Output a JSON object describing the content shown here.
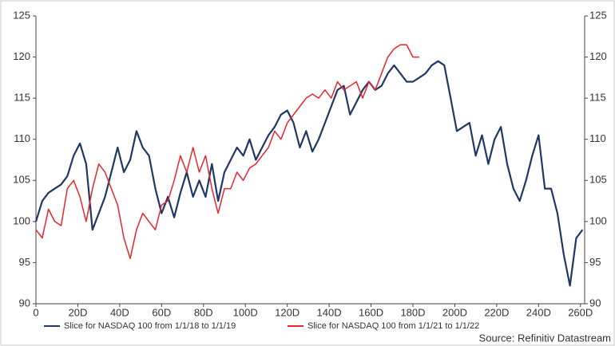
{
  "chart_data": {
    "type": "line",
    "x": [
      0,
      3,
      6,
      9,
      12,
      15,
      18,
      21,
      24,
      27,
      30,
      33,
      36,
      39,
      42,
      45,
      48,
      51,
      54,
      57,
      60,
      63,
      66,
      69,
      72,
      75,
      78,
      81,
      84,
      87,
      90,
      93,
      96,
      99,
      102,
      105,
      108,
      111,
      114,
      117,
      120,
      123,
      126,
      129,
      132,
      135,
      138,
      141,
      144,
      147,
      150,
      153,
      156,
      159,
      162,
      165,
      168,
      171,
      174,
      177,
      180,
      183,
      186,
      189,
      192,
      195,
      198,
      201,
      204,
      207,
      210,
      213,
      216,
      219,
      222,
      225,
      228,
      231,
      234,
      237,
      240,
      243,
      246,
      249,
      252,
      255,
      258,
      261
    ],
    "series": [
      {
        "name": "Slice for NASDAQ 100 from 1/1/18 to 1/1/19",
        "color": "#1f3864",
        "values": [
          100,
          102.5,
          103.5,
          104,
          104.5,
          105.5,
          108,
          109.5,
          107,
          99,
          101,
          103,
          106,
          109,
          106,
          107.5,
          111,
          109,
          108,
          104,
          101,
          103,
          100.5,
          103.5,
          106,
          103,
          105,
          103,
          107,
          102.5,
          106,
          107.5,
          109,
          108,
          110,
          107.5,
          109,
          110.5,
          111.5,
          113,
          113.5,
          112,
          109,
          111,
          108.5,
          110,
          112,
          114,
          116,
          116.5,
          113,
          114.5,
          116,
          117,
          116,
          116.5,
          118,
          119,
          118,
          117,
          117,
          117.5,
          118,
          119,
          119.5,
          119,
          115,
          111,
          111.5,
          112,
          108,
          110.5,
          107,
          110,
          111.5,
          107,
          104,
          102.5,
          105,
          108,
          110.5,
          104,
          104,
          101,
          96,
          92.2,
          98,
          99
        ]
      },
      {
        "name": "Slice for NASDAQ 100 from 1/1/21 to 1/1/22",
        "color": "#e8262b",
        "values": [
          99,
          98,
          101.5,
          100,
          99.5,
          104,
          105,
          103,
          100,
          104,
          107,
          106,
          104,
          102,
          98,
          95.5,
          99,
          101,
          100,
          99,
          102,
          102.5,
          105,
          108,
          106,
          109,
          106,
          108,
          104,
          101,
          104,
          104,
          106,
          105,
          106.5,
          107,
          108,
          109,
          111,
          110,
          112,
          113,
          114,
          115,
          115.5,
          115,
          116,
          115,
          117,
          116,
          116.5,
          117,
          115,
          117,
          116,
          118,
          120,
          121,
          121.5,
          121.5,
          120,
          120,
          null,
          null,
          null,
          null,
          null,
          null,
          null,
          null,
          null,
          null,
          null,
          null,
          null,
          null,
          null,
          null,
          null,
          null,
          null,
          null,
          null,
          null,
          null,
          null,
          null,
          null
        ]
      }
    ],
    "xlim": [
      0,
      262
    ],
    "xticks": [
      0,
      {
        "value": 20,
        "label": "20D"
      },
      {
        "value": 40,
        "label": "40D"
      },
      {
        "value": 60,
        "label": "60D"
      },
      {
        "value": 80,
        "label": "80D"
      },
      {
        "value": 100,
        "label": "100D"
      },
      {
        "value": 120,
        "label": "120D"
      },
      {
        "value": 140,
        "label": "140D"
      },
      {
        "value": 160,
        "label": "160D"
      },
      {
        "value": 180,
        "label": "180D"
      },
      {
        "value": 200,
        "label": "200D"
      },
      {
        "value": 220,
        "label": "220D"
      },
      {
        "value": 240,
        "label": "240D"
      },
      {
        "value": 260,
        "label": "260D"
      }
    ],
    "ylim": [
      90,
      125
    ],
    "yticks": [
      90,
      95,
      100,
      105,
      110,
      115,
      120,
      125
    ],
    "y2lim": [
      90,
      125
    ],
    "y2ticks": [
      90,
      95,
      100,
      105,
      110,
      115,
      120,
      125
    ],
    "legend": "bottom",
    "source": "Source: Refinitiv Datastream"
  }
}
